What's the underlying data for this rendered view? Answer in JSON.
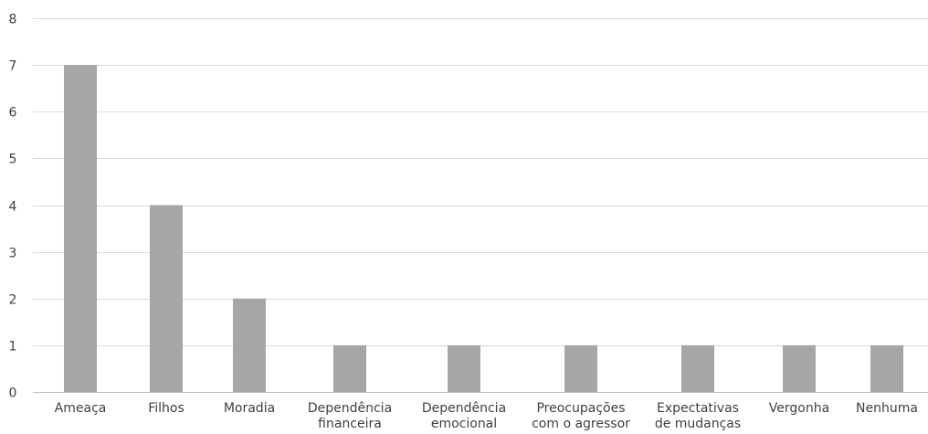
{
  "chart_data": {
    "type": "bar",
    "title": "",
    "xlabel": "",
    "ylabel": "",
    "categories": [
      [
        "Ameaça"
      ],
      [
        "Filhos"
      ],
      [
        "Moradia"
      ],
      [
        "Dependência",
        "financeira"
      ],
      [
        "Dependência",
        "emocional"
      ],
      [
        "Preocupações",
        "com o agressor"
      ],
      [
        "Expectativas",
        "de mudanças"
      ],
      [
        "Vergonha"
      ],
      [
        "Nenhuma"
      ]
    ],
    "values": [
      7,
      4,
      2,
      1,
      1,
      1,
      1,
      1,
      1
    ],
    "ylim": [
      0,
      8
    ],
    "yticks": [
      0,
      1,
      2,
      3,
      4,
      5,
      6,
      7,
      8
    ],
    "grid": true,
    "legend": "none",
    "colors": {
      "bar": "#a6a6a6",
      "grid": "#d9d9d9",
      "text": "#404040"
    }
  }
}
